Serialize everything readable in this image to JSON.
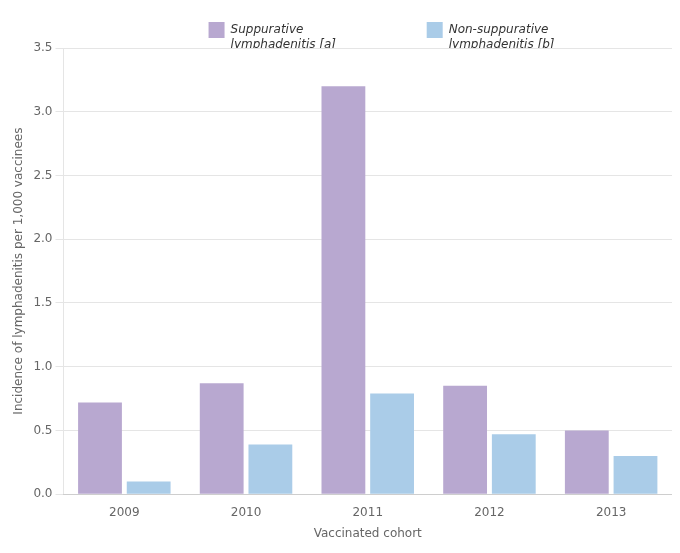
{
  "chart_data": {
    "type": "bar",
    "categories": [
      "2009",
      "2010",
      "2011",
      "2012",
      "2013"
    ],
    "series": [
      {
        "name": "Suppurative\nlymphadenitis [a]",
        "color": "#b8a8d0",
        "values": [
          0.72,
          0.87,
          3.2,
          0.85,
          0.5
        ]
      },
      {
        "name": "Non-suppurative\nlymphadenitis [b]",
        "color": "#aacce8",
        "values": [
          0.1,
          0.39,
          0.79,
          0.47,
          0.3
        ]
      }
    ],
    "xlabel": "Vaccinated cohort",
    "ylabel": "Incidence of lymphadenitis per 1,000 vaccinees",
    "ylim": [
      0,
      3.5
    ],
    "yticks": [
      {
        "value": 0,
        "label": "0.0"
      },
      0.5,
      {
        "value": 1,
        "label": "1.0"
      },
      1.5,
      {
        "value": 2,
        "label": "2.0"
      },
      2.5,
      {
        "value": 3,
        "label": "3.0"
      },
      3.5
    ],
    "grid": true,
    "legend": "upper right"
  }
}
